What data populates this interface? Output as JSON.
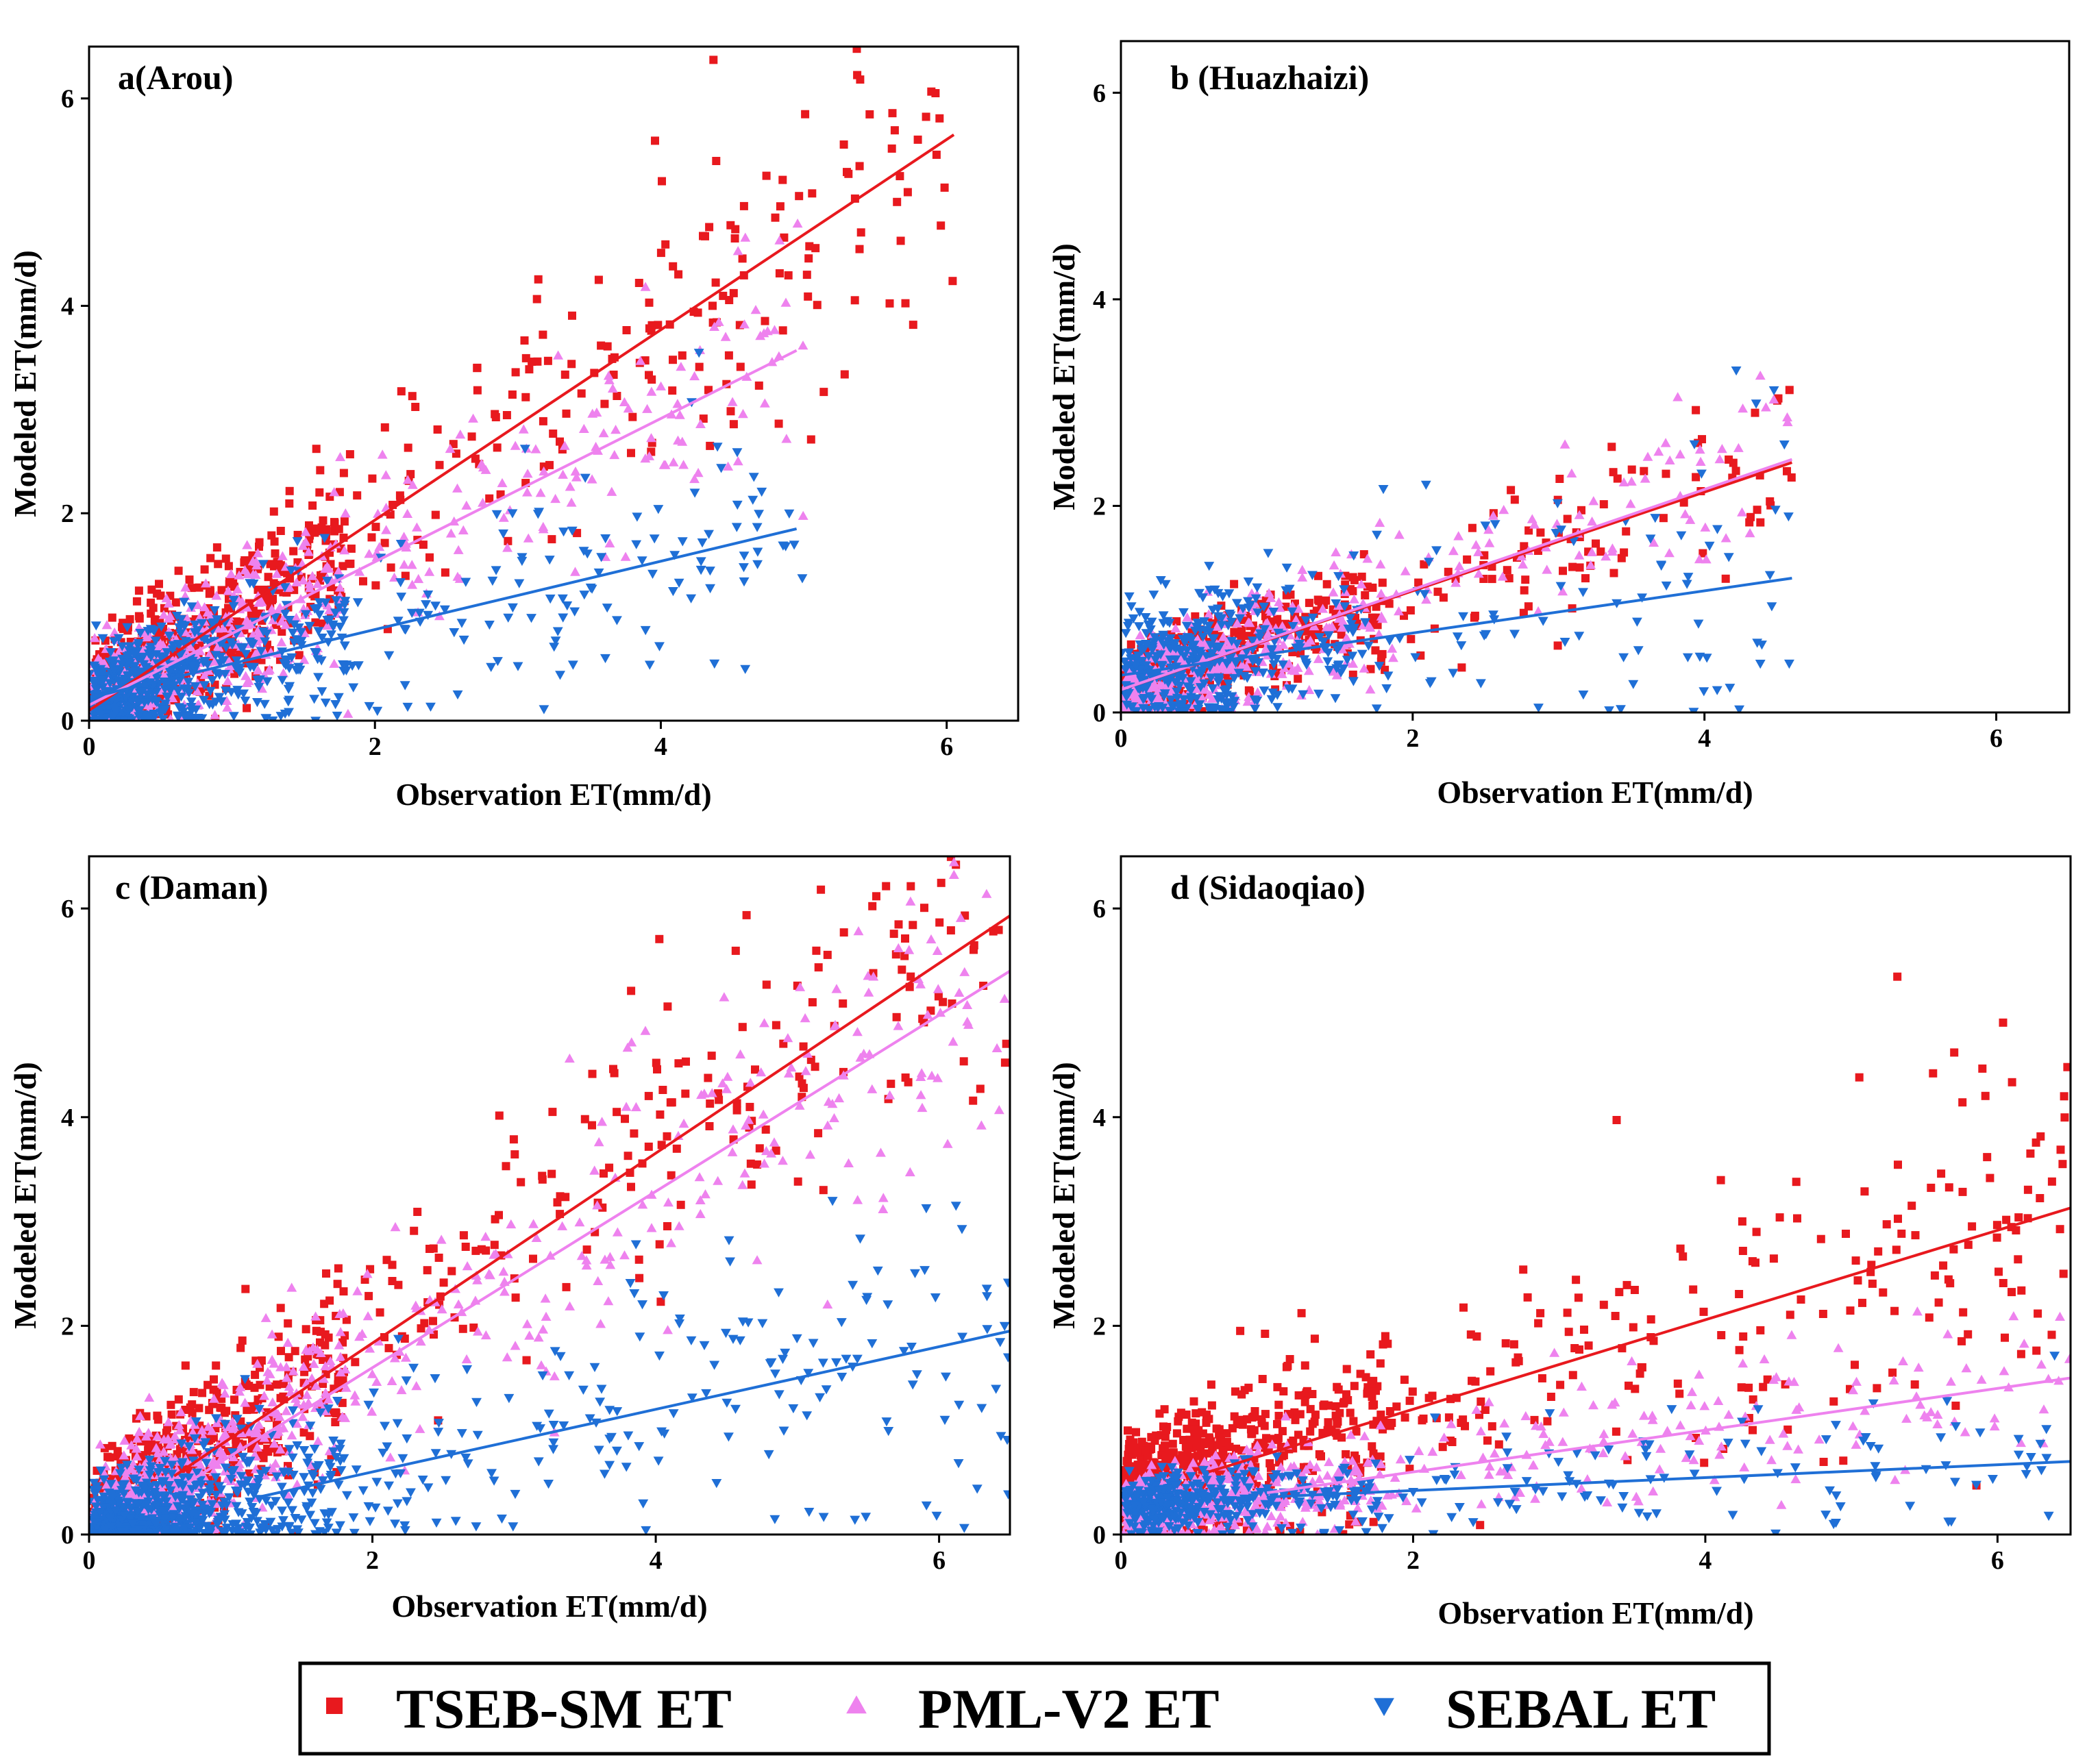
{
  "chart_data": [
    {
      "type": "scatter",
      "title": "a(Arou)",
      "xlabel": "Observation ET(mm/d)",
      "ylabel": "Modeled ET(mm/d)",
      "xlim": [
        0,
        6.5
      ],
      "ylim": [
        0,
        6.5
      ],
      "xticks": [
        0,
        2,
        4,
        6
      ],
      "yticks": [
        0,
        2,
        4,
        6
      ],
      "series": [
        {
          "name": "TSEB-SM ET",
          "marker": "square",
          "color": "#e8191e",
          "n": 900,
          "slope": 0.92,
          "intercept": 0.1,
          "scatter_sd": 0.75,
          "xmax": 6.1,
          "fit": [
            [
              0,
              0.1
            ],
            [
              6.05,
              5.65
            ]
          ]
        },
        {
          "name": "PML-V2 ET",
          "marker": "triangle-up",
          "color": "#ee82ee",
          "n": 650,
          "slope": 0.69,
          "intercept": 0.15,
          "scatter_sd": 0.6,
          "xmax": 5.0,
          "fit": [
            [
              0,
              0.15
            ],
            [
              4.95,
              3.57
            ]
          ]
        },
        {
          "name": "SEBAL ET",
          "marker": "triangle-down",
          "color": "#1f6fd6",
          "n": 650,
          "slope": 0.33,
          "intercept": 0.22,
          "scatter_sd": 0.65,
          "xmax": 5.0,
          "fit": [
            [
              0,
              0.22
            ],
            [
              4.95,
              1.85
            ]
          ]
        }
      ]
    },
    {
      "type": "scatter",
      "title": "b (Huazhaizi)",
      "xlabel": "Observation ET(mm/d)",
      "ylabel": "Modeled ET(mm/d)",
      "xlim": [
        0,
        6.5
      ],
      "ylim": [
        0,
        6.5
      ],
      "xticks": [
        0,
        2,
        4,
        6
      ],
      "yticks": [
        0,
        2,
        4,
        6
      ],
      "series": [
        {
          "name": "TSEB-SM ET",
          "marker": "square",
          "color": "#e8191e",
          "n": 600,
          "slope": 0.48,
          "intercept": 0.22,
          "scatter_sd": 0.4,
          "xmax": 4.6,
          "fit": [
            [
              0,
              0.22
            ],
            [
              4.6,
              2.42
            ]
          ]
        },
        {
          "name": "PML-V2 ET",
          "marker": "triangle-up",
          "color": "#ee82ee",
          "n": 500,
          "slope": 0.48,
          "intercept": 0.22,
          "scatter_sd": 0.5,
          "xmax": 4.6,
          "fit": [
            [
              0,
              0.22
            ],
            [
              4.6,
              2.45
            ]
          ]
        },
        {
          "name": "SEBAL ET",
          "marker": "triangle-down",
          "color": "#1f6fd6",
          "n": 450,
          "slope": 0.2,
          "intercept": 0.36,
          "scatter_sd": 0.75,
          "xmax": 4.6,
          "fit": [
            [
              0,
              0.36
            ],
            [
              4.6,
              1.3
            ]
          ]
        }
      ]
    },
    {
      "type": "scatter",
      "title": "c (Daman)",
      "xlabel": "Observation ET(mm/d)",
      "ylabel": "Modeled ET(mm/d)",
      "xlim": [
        0,
        6.5
      ],
      "ylim": [
        0,
        6.5
      ],
      "xticks": [
        0,
        2,
        4,
        6
      ],
      "yticks": [
        0,
        2,
        4,
        6
      ],
      "series": [
        {
          "name": "TSEB-SM ET",
          "marker": "square",
          "color": "#e8191e",
          "n": 900,
          "slope": 0.94,
          "intercept": 0.0,
          "scatter_sd": 0.8,
          "xmax": 6.5,
          "fit": [
            [
              0.6,
              0.56
            ],
            [
              6.5,
              5.93
            ]
          ]
        },
        {
          "name": "PML-V2 ET",
          "marker": "triangle-up",
          "color": "#ee82ee",
          "n": 900,
          "slope": 0.88,
          "intercept": -0.12,
          "scatter_sd": 0.75,
          "xmax": 6.5,
          "fit": [
            [
              0.7,
              0.5
            ],
            [
              6.5,
              5.4
            ]
          ]
        },
        {
          "name": "SEBAL ET",
          "marker": "triangle-down",
          "color": "#1f6fd6",
          "n": 800,
          "slope": 0.3,
          "intercept": 0.0,
          "scatter_sd": 0.7,
          "xmax": 6.5,
          "fit": [
            [
              1.2,
              0.36
            ],
            [
              6.5,
              1.95
            ]
          ]
        }
      ]
    },
    {
      "type": "scatter",
      "title": "d (Sidaoqiao)",
      "xlabel": "Observation ET(mm/d)",
      "ylabel": "Modeled ET(mm/d)",
      "xlim": [
        0,
        6.5
      ],
      "ylim": [
        0,
        6.5
      ],
      "xticks": [
        0,
        2,
        4,
        6
      ],
      "yticks": [
        0,
        2,
        4,
        6
      ],
      "series": [
        {
          "name": "TSEB-SM ET",
          "marker": "square",
          "color": "#e8191e",
          "n": 900,
          "slope": 0.43,
          "intercept": 0.34,
          "scatter_sd": 0.75,
          "xmax": 6.5,
          "fit": [
            [
              0.6,
              0.6
            ],
            [
              6.5,
              3.13
            ]
          ]
        },
        {
          "name": "PML-V2 ET",
          "marker": "triangle-up",
          "color": "#ee82ee",
          "n": 700,
          "slope": 0.2,
          "intercept": 0.2,
          "scatter_sd": 0.4,
          "xmax": 6.5,
          "fit": [
            [
              1.0,
              0.4
            ],
            [
              6.5,
              1.5
            ]
          ]
        },
        {
          "name": "SEBAL ET",
          "marker": "triangle-down",
          "color": "#1f6fd6",
          "n": 450,
          "slope": 0.06,
          "intercept": 0.3,
          "scatter_sd": 0.35,
          "xmax": 6.5,
          "fit": [
            [
              1.0,
              0.36
            ],
            [
              6.5,
              0.7
            ]
          ]
        }
      ]
    }
  ],
  "legend": {
    "placement": "bottom-center",
    "entries": [
      {
        "label": "TSEB-SM ET",
        "marker": "square",
        "color": "#e8191e"
      },
      {
        "label": "PML-V2 ET",
        "marker": "triangle-up",
        "color": "#ee82ee"
      },
      {
        "label": "SEBAL ET",
        "marker": "triangle-down",
        "color": "#1f6fd6"
      }
    ]
  }
}
